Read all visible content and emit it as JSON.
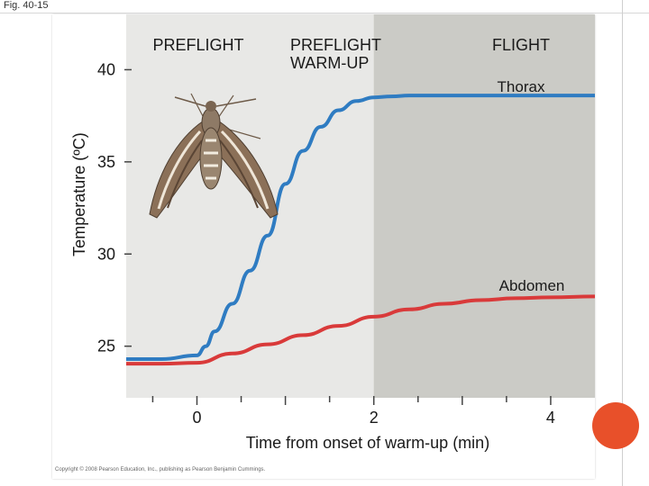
{
  "figure_label": "Fig. 40-15",
  "copyright": "Copyright © 2008 Pearson Education, Inc., publishing as Pearson Benjamin Cummings.",
  "colors": {
    "thorax": "#2f7cc2",
    "abdomen": "#d93a3a",
    "plot_bg": "#e8e8e6",
    "flight_bg": "#cbcbc6",
    "accent_dot": "#e8502a"
  },
  "chart_data": {
    "type": "line",
    "xlabel": "Time from onset of warm-up (min)",
    "ylabel": "Temperature (ºC)",
    "xlim": [
      -0.8,
      4.5
    ],
    "ylim": [
      22.2,
      43
    ],
    "x_ticks": [
      0,
      2,
      4
    ],
    "y_ticks": [
      25,
      30,
      35,
      40
    ],
    "grid": false,
    "regions": [
      {
        "label": "PREFLIGHT",
        "x_start": -0.8,
        "x_end": 0
      },
      {
        "label": "PREFLIGHT\nWARM-UP",
        "x_start": 0,
        "x_end": 2
      },
      {
        "label": "FLIGHT",
        "x_start": 2,
        "x_end": 4.5,
        "shaded": true
      }
    ],
    "series": [
      {
        "name": "Thorax",
        "x": [
          -0.8,
          -0.4,
          0.0,
          0.1,
          0.2,
          0.4,
          0.6,
          0.8,
          1.0,
          1.2,
          1.4,
          1.6,
          1.8,
          2.0,
          2.2,
          2.4,
          2.6,
          3.0,
          3.5,
          4.0,
          4.5
        ],
        "y": [
          24.3,
          24.3,
          24.5,
          25.0,
          25.8,
          27.3,
          29.1,
          31.0,
          33.8,
          35.6,
          36.9,
          37.8,
          38.3,
          38.5,
          38.55,
          38.6,
          38.6,
          38.6,
          38.6,
          38.6,
          38.6
        ]
      },
      {
        "name": "Abdomen",
        "x": [
          -0.8,
          -0.4,
          0.0,
          0.4,
          0.8,
          1.2,
          1.6,
          2.0,
          2.4,
          2.8,
          3.2,
          3.6,
          4.0,
          4.5
        ],
        "y": [
          24.05,
          24.05,
          24.1,
          24.6,
          25.1,
          25.6,
          26.1,
          26.6,
          27.0,
          27.3,
          27.5,
          27.6,
          27.65,
          27.7
        ]
      }
    ]
  }
}
